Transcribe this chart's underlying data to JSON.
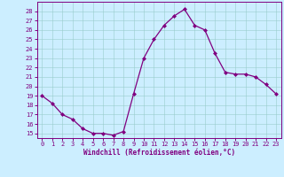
{
  "x": [
    0,
    1,
    2,
    3,
    4,
    5,
    6,
    7,
    8,
    9,
    10,
    11,
    12,
    13,
    14,
    15,
    16,
    17,
    18,
    19,
    20,
    21,
    22,
    23
  ],
  "y": [
    19.0,
    18.2,
    17.0,
    16.5,
    15.5,
    15.0,
    15.0,
    14.8,
    15.2,
    19.2,
    23.0,
    25.0,
    26.5,
    27.5,
    28.2,
    26.5,
    26.0,
    23.5,
    21.5,
    21.3,
    21.3,
    21.0,
    20.2,
    19.2
  ],
  "line_color": "#800080",
  "marker": "D",
  "marker_size": 2.0,
  "bg_color": "#cceeff",
  "grid_color": "#99cccc",
  "xlabel": "Windchill (Refroidissement éolien,°C)",
  "xlabel_color": "#800080",
  "ylabel_ticks": [
    15,
    16,
    17,
    18,
    19,
    20,
    21,
    22,
    23,
    24,
    25,
    26,
    27,
    28
  ],
  "ylim": [
    14.5,
    29.0
  ],
  "xlim": [
    -0.5,
    23.5
  ],
  "tick_fontsize": 5.0,
  "xlabel_fontsize": 5.5,
  "tick_color": "#800080",
  "axis_color": "#800080",
  "linewidth": 0.9,
  "spine_linewidth": 0.7
}
